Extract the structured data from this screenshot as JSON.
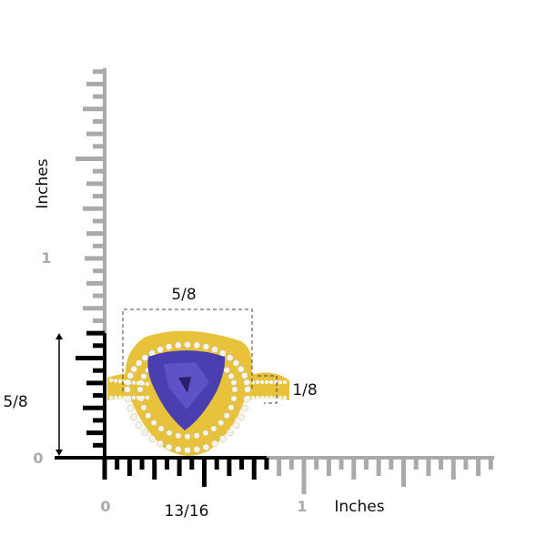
{
  "units": "Inches",
  "vertical_ruler": {
    "axis_label": "Inches",
    "tick_labels": [
      "0",
      "1"
    ],
    "measured_label": "5/8",
    "measured_fraction": 0.625,
    "extent_in": 1.9375
  },
  "horizontal_ruler": {
    "axis_label": "Inches",
    "tick_labels": [
      "0",
      "1"
    ],
    "measured_label": "13/16",
    "measured_fraction": 0.8125,
    "extent_in": 1.9375
  },
  "dimensions": {
    "top_width_label": "5/8",
    "band_width_label": "1/8"
  },
  "colors": {
    "ruler_active": "#000000",
    "ruler_inactive": "#aaaaaa",
    "gold": "#e8c23a",
    "gem": "#4a3fb0",
    "diamond": "#f4f4ee"
  },
  "product": {
    "icon": "tanzanite-trillion-halo-ring"
  }
}
